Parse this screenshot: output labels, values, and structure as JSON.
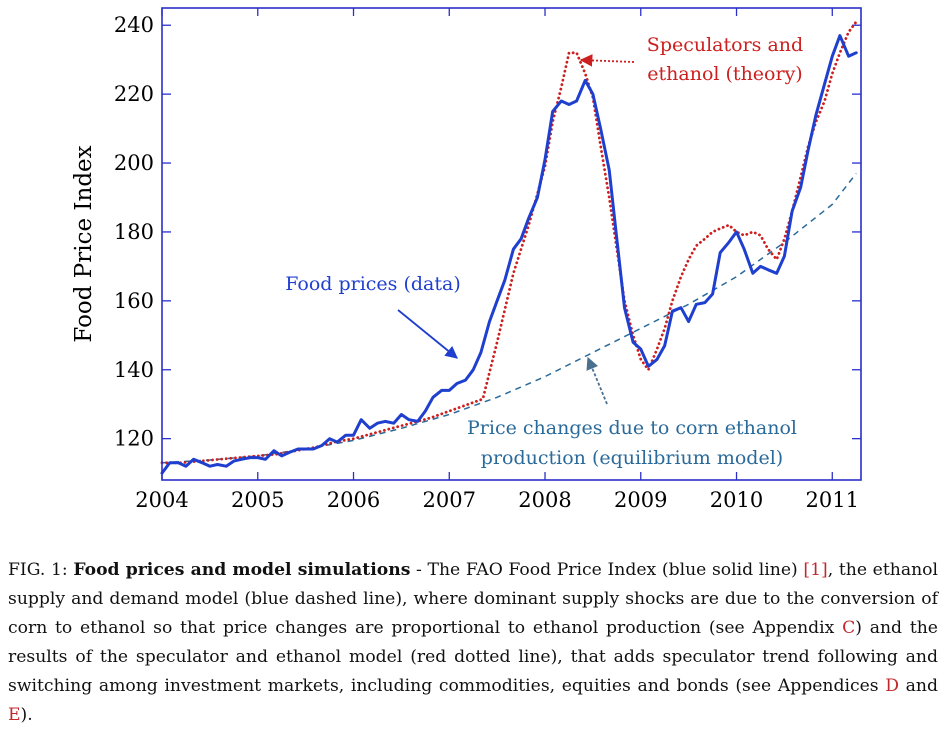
{
  "chart_data": {
    "type": "line",
    "ylabel": "Food Price Index",
    "xlim": [
      2004.0,
      2011.3
    ],
    "ylim": [
      108,
      245
    ],
    "x_ticks": [
      2004,
      2005,
      2006,
      2007,
      2008,
      2009,
      2010,
      2011
    ],
    "y_ticks": [
      120,
      140,
      160,
      180,
      200,
      220,
      240
    ],
    "series": [
      {
        "name": "Food prices (data)",
        "style": "solid",
        "color": "#1f3fcf",
        "points": [
          [
            2004.0,
            110
          ],
          [
            2004.08,
            113
          ],
          [
            2004.17,
            113
          ],
          [
            2004.25,
            112
          ],
          [
            2004.33,
            114
          ],
          [
            2004.42,
            113
          ],
          [
            2004.5,
            112
          ],
          [
            2004.58,
            112.5
          ],
          [
            2004.67,
            112
          ],
          [
            2004.75,
            113.5
          ],
          [
            2004.83,
            114
          ],
          [
            2004.92,
            114.5
          ],
          [
            2005.0,
            114.5
          ],
          [
            2005.08,
            114
          ],
          [
            2005.17,
            116.5
          ],
          [
            2005.25,
            115
          ],
          [
            2005.33,
            116
          ],
          [
            2005.42,
            117
          ],
          [
            2005.5,
            117
          ],
          [
            2005.58,
            117
          ],
          [
            2005.67,
            118
          ],
          [
            2005.75,
            120
          ],
          [
            2005.83,
            119
          ],
          [
            2005.92,
            121
          ],
          [
            2006.0,
            121
          ],
          [
            2006.08,
            125.5
          ],
          [
            2006.17,
            123
          ],
          [
            2006.25,
            124.5
          ],
          [
            2006.33,
            125
          ],
          [
            2006.42,
            124.5
          ],
          [
            2006.5,
            127
          ],
          [
            2006.58,
            125.5
          ],
          [
            2006.67,
            125
          ],
          [
            2006.75,
            128
          ],
          [
            2006.83,
            132
          ],
          [
            2006.92,
            134
          ],
          [
            2007.0,
            134
          ],
          [
            2007.08,
            136
          ],
          [
            2007.17,
            137
          ],
          [
            2007.25,
            140
          ],
          [
            2007.33,
            145
          ],
          [
            2007.42,
            154
          ],
          [
            2007.5,
            160
          ],
          [
            2007.58,
            166
          ],
          [
            2007.67,
            175
          ],
          [
            2007.75,
            178
          ],
          [
            2007.83,
            184
          ],
          [
            2007.92,
            190
          ],
          [
            2008.0,
            201
          ],
          [
            2008.08,
            215
          ],
          [
            2008.17,
            218
          ],
          [
            2008.25,
            217
          ],
          [
            2008.33,
            218
          ],
          [
            2008.42,
            224
          ],
          [
            2008.5,
            220
          ],
          [
            2008.58,
            210
          ],
          [
            2008.67,
            198
          ],
          [
            2008.75,
            178
          ],
          [
            2008.83,
            158
          ],
          [
            2008.92,
            148
          ],
          [
            2009.0,
            146
          ],
          [
            2009.08,
            141
          ],
          [
            2009.17,
            143
          ],
          [
            2009.25,
            147
          ],
          [
            2009.33,
            157
          ],
          [
            2009.42,
            158
          ],
          [
            2009.5,
            154
          ],
          [
            2009.58,
            159
          ],
          [
            2009.67,
            159.5
          ],
          [
            2009.75,
            162
          ],
          [
            2009.83,
            174
          ],
          [
            2009.92,
            177
          ],
          [
            2010.0,
            180
          ],
          [
            2010.08,
            175
          ],
          [
            2010.17,
            168
          ],
          [
            2010.25,
            170
          ],
          [
            2010.33,
            169
          ],
          [
            2010.42,
            168
          ],
          [
            2010.5,
            173
          ],
          [
            2010.58,
            186
          ],
          [
            2010.67,
            193
          ],
          [
            2010.75,
            204
          ],
          [
            2010.83,
            214
          ],
          [
            2010.92,
            223
          ],
          [
            2011.0,
            231
          ],
          [
            2011.08,
            237
          ],
          [
            2011.17,
            231
          ],
          [
            2011.25,
            232
          ]
        ]
      },
      {
        "name": "Speculators and ethanol (theory)",
        "style": "dotted",
        "color": "#cc1f1f",
        "points": [
          [
            2004.0,
            113
          ],
          [
            2004.2,
            113
          ],
          [
            2004.4,
            113.5
          ],
          [
            2004.6,
            114
          ],
          [
            2004.8,
            114.5
          ],
          [
            2005.0,
            115
          ],
          [
            2005.2,
            115.5
          ],
          [
            2005.4,
            116.5
          ],
          [
            2005.6,
            117.5
          ],
          [
            2005.8,
            119
          ],
          [
            2006.0,
            120
          ],
          [
            2006.2,
            121.5
          ],
          [
            2006.4,
            123
          ],
          [
            2006.6,
            124.5
          ],
          [
            2006.8,
            126
          ],
          [
            2007.0,
            128
          ],
          [
            2007.2,
            130
          ],
          [
            2007.35,
            131.5
          ],
          [
            2007.5,
            148
          ],
          [
            2007.67,
            168
          ],
          [
            2007.83,
            182
          ],
          [
            2008.0,
            199
          ],
          [
            2008.08,
            212
          ],
          [
            2008.17,
            222
          ],
          [
            2008.25,
            232
          ],
          [
            2008.33,
            232
          ],
          [
            2008.42,
            226
          ],
          [
            2008.5,
            219
          ],
          [
            2008.58,
            205
          ],
          [
            2008.67,
            190
          ],
          [
            2008.75,
            175
          ],
          [
            2008.83,
            160
          ],
          [
            2008.92,
            150
          ],
          [
            2009.0,
            143
          ],
          [
            2009.08,
            140
          ],
          [
            2009.17,
            146
          ],
          [
            2009.25,
            152
          ],
          [
            2009.33,
            160
          ],
          [
            2009.42,
            167
          ],
          [
            2009.5,
            172
          ],
          [
            2009.58,
            176
          ],
          [
            2009.67,
            178
          ],
          [
            2009.75,
            180
          ],
          [
            2009.83,
            181
          ],
          [
            2009.92,
            182
          ],
          [
            2010.0,
            180
          ],
          [
            2010.08,
            179
          ],
          [
            2010.17,
            180
          ],
          [
            2010.25,
            179
          ],
          [
            2010.33,
            175
          ],
          [
            2010.42,
            172
          ],
          [
            2010.5,
            178
          ],
          [
            2010.58,
            186
          ],
          [
            2010.67,
            196
          ],
          [
            2010.75,
            205
          ],
          [
            2010.83,
            212
          ],
          [
            2010.92,
            218
          ],
          [
            2011.0,
            226
          ],
          [
            2011.08,
            232
          ],
          [
            2011.17,
            238
          ],
          [
            2011.25,
            241
          ]
        ]
      },
      {
        "name": "Price changes due to corn ethanol production (equilibrium model)",
        "style": "dashed",
        "color": "#2a6a9a",
        "points": [
          [
            2004.0,
            113
          ],
          [
            2004.5,
            113.8
          ],
          [
            2005.0,
            115
          ],
          [
            2005.5,
            117
          ],
          [
            2006.0,
            119.5
          ],
          [
            2006.5,
            123
          ],
          [
            2007.0,
            127
          ],
          [
            2007.5,
            132
          ],
          [
            2008.0,
            138
          ],
          [
            2008.5,
            145
          ],
          [
            2009.0,
            152
          ],
          [
            2009.5,
            159
          ],
          [
            2010.0,
            167
          ],
          [
            2010.5,
            177
          ],
          [
            2011.0,
            188
          ],
          [
            2011.25,
            197
          ]
        ]
      }
    ],
    "annotations": [
      {
        "lines": [
          "Speculators and",
          "ethanol (theory)"
        ],
        "color": "#cc1f1f"
      },
      {
        "lines": [
          "Food prices (data)"
        ],
        "color": "#1f3fcf"
      },
      {
        "lines": [
          "Price changes due to corn ethanol",
          "production (equilibrium model)"
        ],
        "color": "#2a6a9a"
      }
    ]
  },
  "caption": {
    "label": "FIG. 1:",
    "title": "Food prices and model simulations",
    "text_1": " - The FAO Food Price Index (blue solid line) ",
    "ref_1": "[1]",
    "text_2": ", the ethanol supply and demand model (blue dashed line), where dominant supply shocks are due to the conversion of corn to ethanol so that price changes are proportional to ethanol production (see Appendix ",
    "ref_c": "C",
    "text_3": ") and the results of the speculator and ethanol model (red dotted line), that adds speculator trend following and switching among investment markets, including commodities, equities and bonds (see Appendices ",
    "ref_d": "D",
    "text_4": " and ",
    "ref_e": "E",
    "text_5": ")."
  }
}
